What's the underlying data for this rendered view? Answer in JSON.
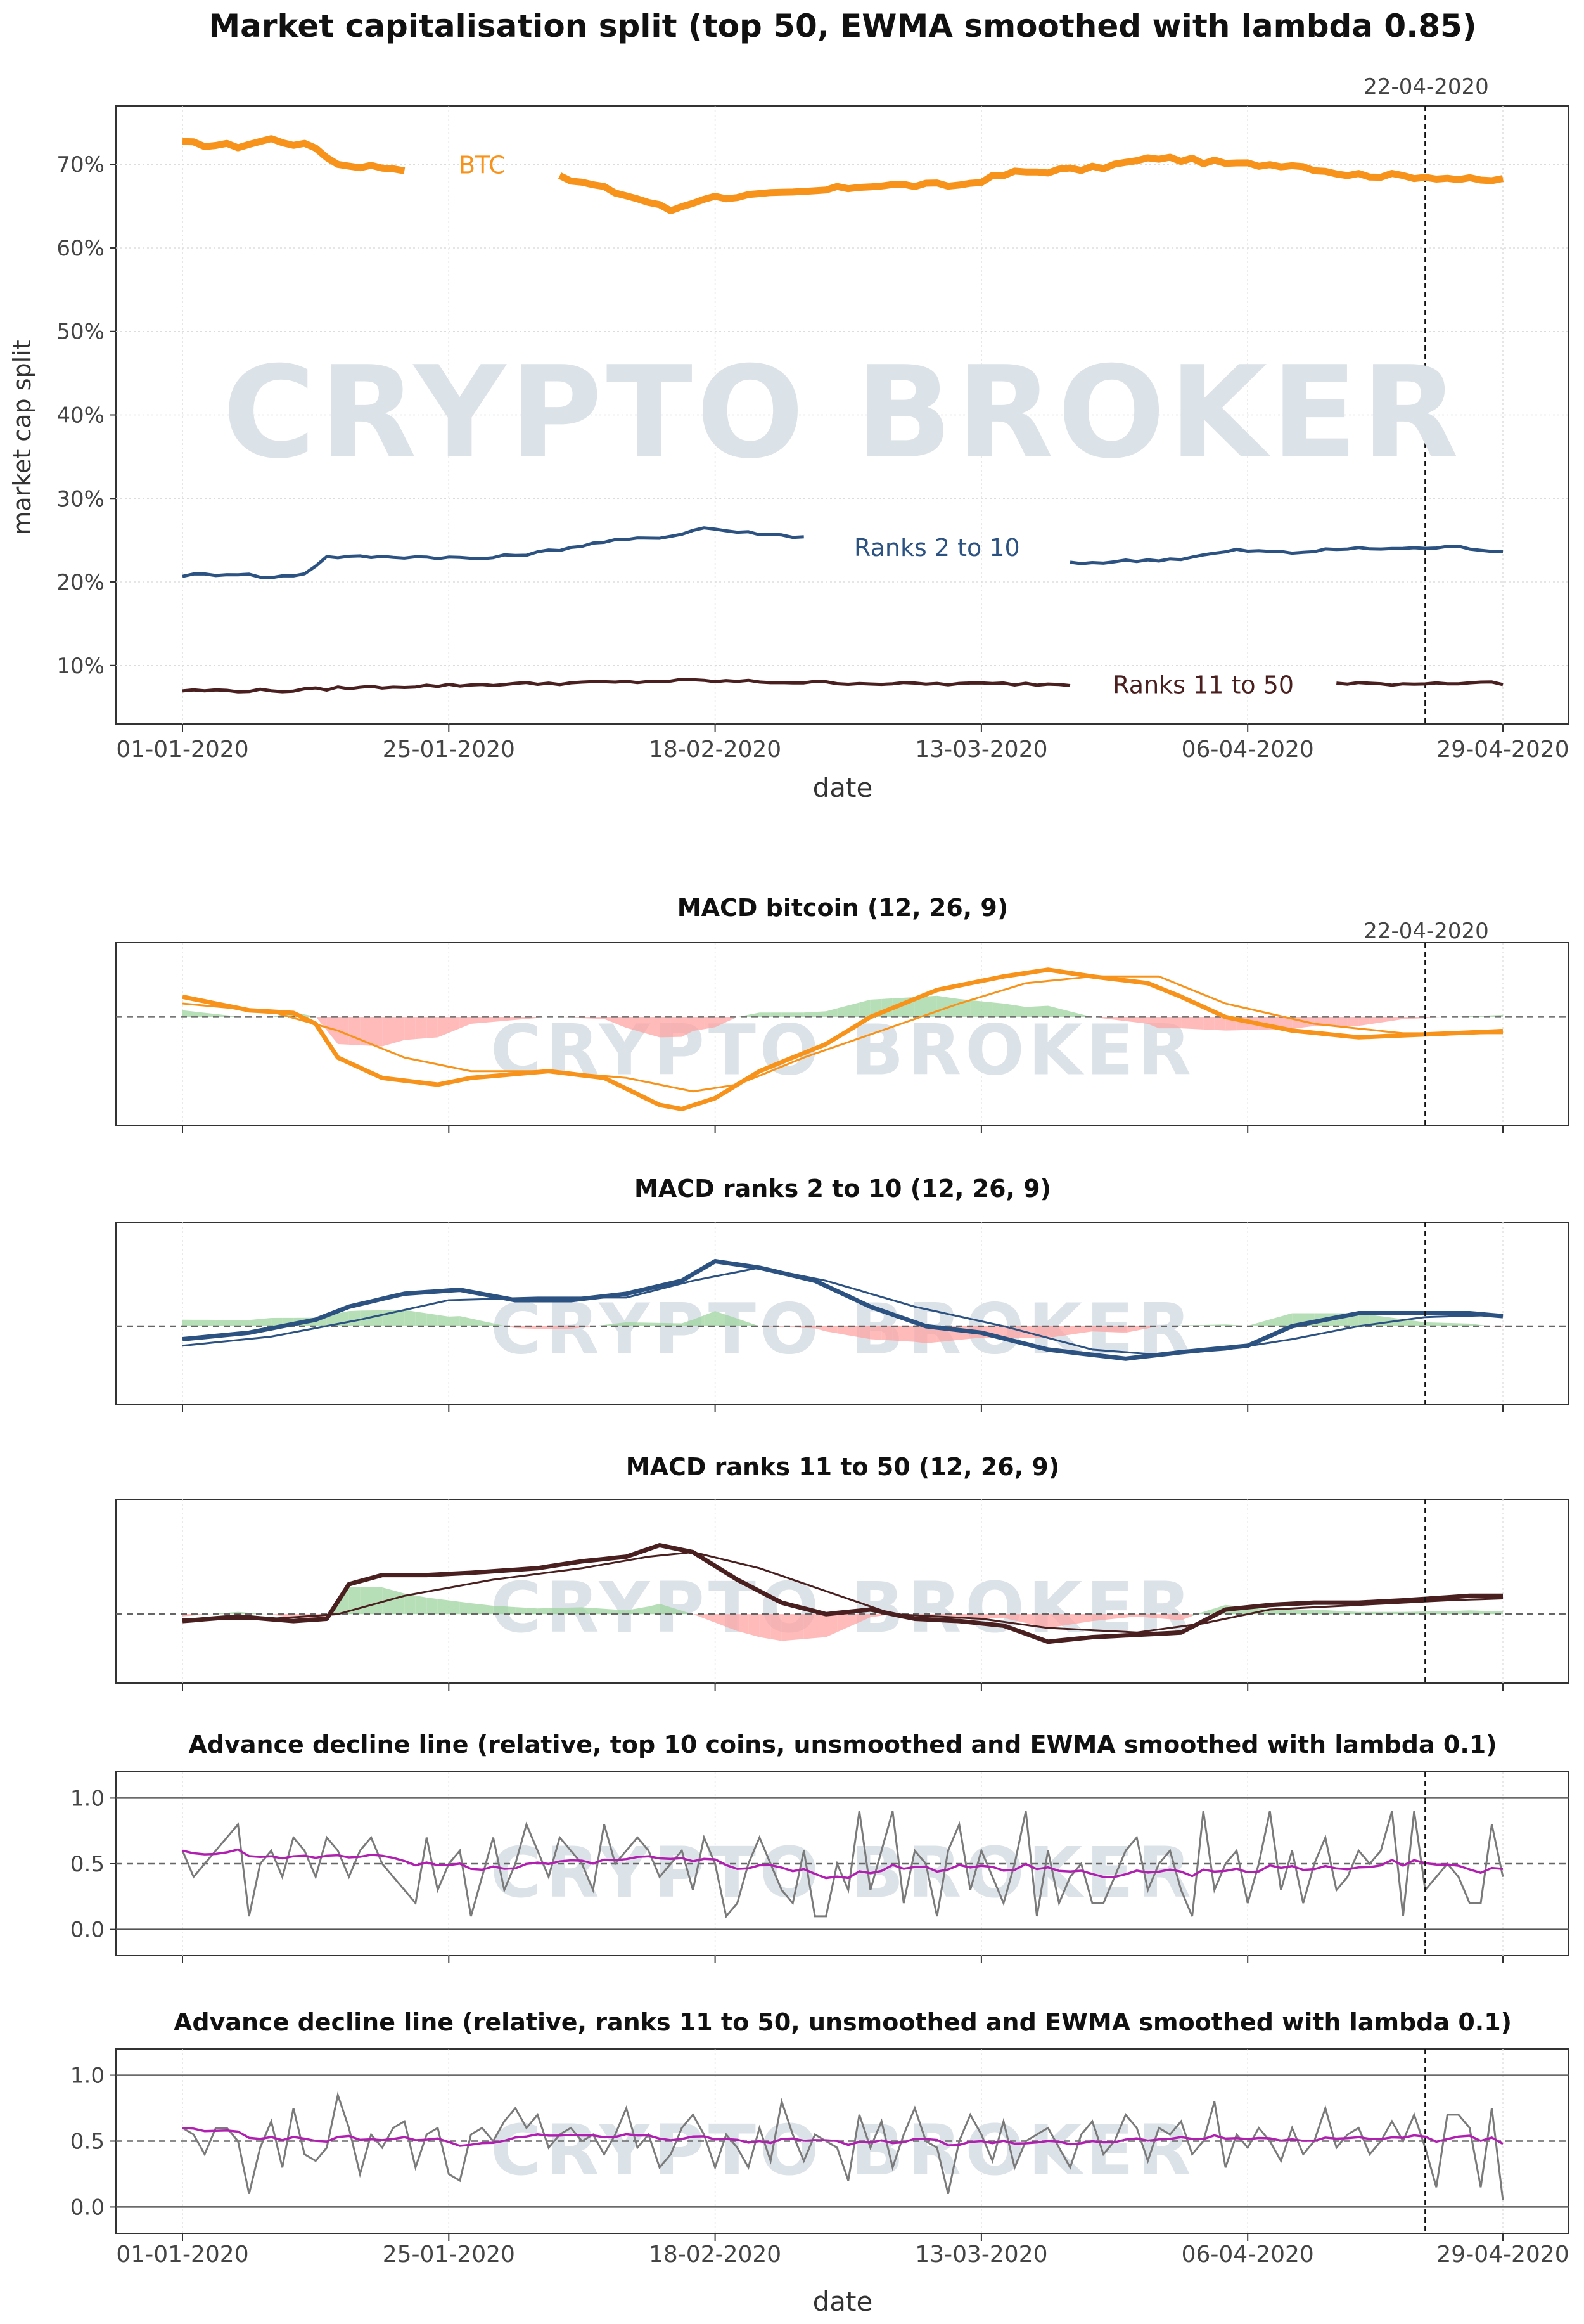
{
  "figure": {
    "title": "Market capitalisation split (top 50, EWMA smoothed with lambda 0.85)",
    "watermark": "CRYPTO BROKER",
    "marker_date_label": "22-04-2020",
    "x_ticks": [
      "01-01-2020",
      "25-01-2020",
      "18-02-2020",
      "13-03-2020",
      "06-04-2020",
      "29-04-2020"
    ],
    "x_label": "date"
  },
  "chart_data": [
    {
      "type": "line",
      "title": "Market capitalisation split (top 50, EWMA smoothed with lambda 0.85)",
      "xlabel": "date",
      "ylabel": "market cap split",
      "y_ticks": [
        "10%",
        "20%",
        "30%",
        "40%",
        "50%",
        "60%",
        "70%"
      ],
      "ylim": [
        3,
        77
      ],
      "x_range": [
        "01-01-2020",
        "29-04-2020"
      ],
      "grid": true,
      "vertical_marker": "22-04-2020",
      "colors": {
        "btc": "#f7931a",
        "ranks_2_10": "#2c5282",
        "ranks_11_50": "#4a1f1f"
      },
      "series": [
        {
          "name": "BTC",
          "label_at_day": 27,
          "knots": [
            [
              0,
              72.5
            ],
            [
              5,
              72.2
            ],
            [
              8,
              73
            ],
            [
              12,
              72
            ],
            [
              14,
              70
            ],
            [
              20,
              69.5
            ],
            [
              27,
              70
            ],
            [
              30,
              69.5
            ],
            [
              37,
              67.5
            ],
            [
              42,
              65.5
            ],
            [
              44,
              64.5
            ],
            [
              47,
              66
            ],
            [
              55,
              66.5
            ],
            [
              62,
              67.5
            ],
            [
              70,
              67.5
            ],
            [
              75,
              69
            ],
            [
              82,
              69.5
            ],
            [
              88,
              70.8
            ],
            [
              95,
              70
            ],
            [
              100,
              70
            ],
            [
              105,
              68.8
            ],
            [
              113,
              68.5
            ],
            [
              117,
              68
            ],
            [
              119,
              68.2
            ],
            [
              120,
              69
            ]
          ]
        },
        {
          "name": "Ranks 2 to 10",
          "label_at_day": 68,
          "knots": [
            [
              0,
              20.8
            ],
            [
              5,
              21
            ],
            [
              8,
              20.5
            ],
            [
              11,
              21
            ],
            [
              13,
              23
            ],
            [
              17,
              23
            ],
            [
              22,
              23
            ],
            [
              27,
              22.8
            ],
            [
              32,
              23.5
            ],
            [
              38,
              24.8
            ],
            [
              44,
              25.5
            ],
            [
              47,
              26.5
            ],
            [
              50,
              26
            ],
            [
              55,
              25.5
            ],
            [
              60,
              25
            ],
            [
              68,
              24
            ],
            [
              70,
              23
            ],
            [
              75,
              23
            ],
            [
              80,
              22.2
            ],
            [
              85,
              22.5
            ],
            [
              90,
              22.8
            ],
            [
              95,
              23.8
            ],
            [
              100,
              23.5
            ],
            [
              105,
              24
            ],
            [
              110,
              24
            ],
            [
              115,
              24.2
            ],
            [
              120,
              23.5
            ]
          ]
        },
        {
          "name": "Ranks 11 to 50",
          "label_at_day": 92,
          "knots": [
            [
              0,
              7
            ],
            [
              10,
              7
            ],
            [
              14,
              7.3
            ],
            [
              20,
              7.5
            ],
            [
              30,
              7.8
            ],
            [
              40,
              8
            ],
            [
              45,
              8.2
            ],
            [
              55,
              8
            ],
            [
              65,
              7.8
            ],
            [
              75,
              7.8
            ],
            [
              85,
              7.7
            ],
            [
              95,
              7.8
            ],
            [
              110,
              7.8
            ],
            [
              117,
              8
            ],
            [
              120,
              7.7
            ]
          ]
        }
      ]
    },
    {
      "type": "area",
      "title": "MACD bitcoin (12, 26, 9)",
      "color": "#f7931a",
      "ylim": [
        -0.08,
        0.055
      ],
      "macd_knots": [
        [
          0,
          0.015
        ],
        [
          3,
          0.01
        ],
        [
          6,
          0.005
        ],
        [
          10,
          0.003
        ],
        [
          12,
          -0.005
        ],
        [
          14,
          -0.03
        ],
        [
          18,
          -0.045
        ],
        [
          23,
          -0.05
        ],
        [
          26,
          -0.045
        ],
        [
          33,
          -0.04
        ],
        [
          38,
          -0.045
        ],
        [
          43,
          -0.065
        ],
        [
          45,
          -0.068
        ],
        [
          48,
          -0.06
        ],
        [
          52,
          -0.04
        ],
        [
          58,
          -0.02
        ],
        [
          62,
          0
        ],
        [
          68,
          0.02
        ],
        [
          74,
          0.03
        ],
        [
          78,
          0.035
        ],
        [
          82,
          0.03
        ],
        [
          87,
          0.025
        ],
        [
          90,
          0.015
        ],
        [
          94,
          0
        ],
        [
          100,
          -0.01
        ],
        [
          106,
          -0.015
        ],
        [
          120,
          -0.01
        ]
      ],
      "signal_knots": [
        [
          0,
          0.01
        ],
        [
          8,
          0.004
        ],
        [
          14,
          -0.01
        ],
        [
          20,
          -0.03
        ],
        [
          26,
          -0.04
        ],
        [
          33,
          -0.04
        ],
        [
          40,
          -0.045
        ],
        [
          46,
          -0.055
        ],
        [
          50,
          -0.05
        ],
        [
          56,
          -0.03
        ],
        [
          63,
          -0.01
        ],
        [
          70,
          0.01
        ],
        [
          76,
          0.025
        ],
        [
          82,
          0.03
        ],
        [
          88,
          0.03
        ],
        [
          94,
          0.01
        ],
        [
          102,
          -0.005
        ],
        [
          110,
          -0.012
        ],
        [
          120,
          -0.012
        ]
      ]
    },
    {
      "type": "area",
      "title": "MACD ranks 2 to 10 (12, 26, 9)",
      "color": "#2c5282",
      "ylim": [
        -0.06,
        0.08
      ],
      "macd_knots": [
        [
          0,
          -0.01
        ],
        [
          6,
          -0.005
        ],
        [
          12,
          0.005
        ],
        [
          15,
          0.015
        ],
        [
          20,
          0.025
        ],
        [
          25,
          0.028
        ],
        [
          30,
          0.02
        ],
        [
          35,
          0.02
        ],
        [
          40,
          0.025
        ],
        [
          45,
          0.035
        ],
        [
          48,
          0.05
        ],
        [
          52,
          0.045
        ],
        [
          57,
          0.035
        ],
        [
          62,
          0.015
        ],
        [
          67,
          0
        ],
        [
          72,
          -0.005
        ],
        [
          78,
          -0.018
        ],
        [
          85,
          -0.025
        ],
        [
          90,
          -0.02
        ],
        [
          96,
          -0.015
        ],
        [
          100,
          0
        ],
        [
          106,
          0.01
        ],
        [
          110,
          0.01
        ],
        [
          116,
          0.01
        ],
        [
          120,
          0.007
        ]
      ],
      "signal_knots": [
        [
          0,
          -0.015
        ],
        [
          8,
          -0.008
        ],
        [
          16,
          0.005
        ],
        [
          24,
          0.02
        ],
        [
          32,
          0.022
        ],
        [
          40,
          0.022
        ],
        [
          46,
          0.035
        ],
        [
          52,
          0.045
        ],
        [
          58,
          0.035
        ],
        [
          66,
          0.015
        ],
        [
          74,
          0
        ],
        [
          82,
          -0.018
        ],
        [
          88,
          -0.022
        ],
        [
          94,
          -0.018
        ],
        [
          100,
          -0.01
        ],
        [
          106,
          0
        ],
        [
          112,
          0.007
        ],
        [
          120,
          0.009
        ]
      ]
    },
    {
      "type": "area",
      "title": "MACD ranks 11 to 50 (12, 26, 9)",
      "color": "#4a1f1f",
      "ylim": [
        -0.03,
        0.05
      ],
      "macd_knots": [
        [
          0,
          -0.003
        ],
        [
          5,
          -0.001
        ],
        [
          10,
          -0.003
        ],
        [
          13,
          -0.002
        ],
        [
          15,
          0.013
        ],
        [
          18,
          0.017
        ],
        [
          22,
          0.017
        ],
        [
          26,
          0.018
        ],
        [
          32,
          0.02
        ],
        [
          36,
          0.023
        ],
        [
          40,
          0.025
        ],
        [
          43,
          0.03
        ],
        [
          46,
          0.027
        ],
        [
          50,
          0.015
        ],
        [
          54,
          0.005
        ],
        [
          58,
          0
        ],
        [
          62,
          0.002
        ],
        [
          66,
          -0.002
        ],
        [
          70,
          -0.003
        ],
        [
          74,
          -0.005
        ],
        [
          78,
          -0.012
        ],
        [
          82,
          -0.01
        ],
        [
          86,
          -0.009
        ],
        [
          90,
          -0.008
        ],
        [
          94,
          0.002
        ],
        [
          98,
          0.004
        ],
        [
          102,
          0.005
        ],
        [
          106,
          0.005
        ],
        [
          110,
          0.006
        ],
        [
          113,
          0.007
        ],
        [
          116,
          0.008
        ],
        [
          119,
          0.008
        ],
        [
          120,
          0.005
        ]
      ],
      "signal_knots": [
        [
          0,
          -0.002
        ],
        [
          8,
          -0.002
        ],
        [
          14,
          0
        ],
        [
          20,
          0.008
        ],
        [
          28,
          0.015
        ],
        [
          36,
          0.02
        ],
        [
          42,
          0.025
        ],
        [
          46,
          0.027
        ],
        [
          52,
          0.02
        ],
        [
          58,
          0.01
        ],
        [
          64,
          0
        ],
        [
          72,
          -0.002
        ],
        [
          78,
          -0.006
        ],
        [
          86,
          -0.008
        ],
        [
          92,
          -0.004
        ],
        [
          98,
          0.002
        ],
        [
          106,
          0.004
        ],
        [
          114,
          0.006
        ],
        [
          120,
          0.007
        ]
      ]
    },
    {
      "type": "line",
      "title": "Advance decline line (relative, top 10 coins, unsmoothed and EWMA smoothed with lambda 0.1)",
      "y_ticks": [
        "0.0",
        "0.5",
        "1.0"
      ],
      "ylim": [
        -0.2,
        1.2
      ],
      "raw_color": "#7a7a7a",
      "ewma_color": "#b01fb0",
      "raw": [
        0.6,
        0.4,
        0.5,
        0.6,
        0.7,
        0.8,
        0.1,
        0.5,
        0.6,
        0.4,
        0.7,
        0.6,
        0.4,
        0.7,
        0.6,
        0.4,
        0.6,
        0.7,
        0.5,
        0.4,
        0.3,
        0.2,
        0.7,
        0.3,
        0.5,
        0.6,
        0.1,
        0.4,
        0.7,
        0.3,
        0.5,
        0.8,
        0.6,
        0.4,
        0.7,
        0.6,
        0.5,
        0.3,
        0.8,
        0.5,
        0.6,
        0.7,
        0.6,
        0.4,
        0.5,
        0.6,
        0.3,
        0.7,
        0.5,
        0.1,
        0.2,
        0.5,
        0.7,
        0.5,
        0.3,
        0.2,
        0.6,
        0.1,
        0.1,
        0.5,
        0.3,
        0.9,
        0.3,
        0.6,
        0.9,
        0.2,
        0.6,
        0.5,
        0.1,
        0.6,
        0.8,
        0.3,
        0.6,
        0.4,
        0.2,
        0.5,
        0.9,
        0.1,
        0.6,
        0.2,
        0.4,
        0.5,
        0.2,
        0.2,
        0.4,
        0.6,
        0.7,
        0.3,
        0.5,
        0.6,
        0.3,
        0.1,
        0.9,
        0.3,
        0.5,
        0.6,
        0.2,
        0.5,
        0.9,
        0.3,
        0.6,
        0.2,
        0.5,
        0.7,
        0.3,
        0.4,
        0.6,
        0.5,
        0.6,
        0.9,
        0.1,
        0.9,
        0.3,
        0.4,
        0.5,
        0.4,
        0.2,
        0.2,
        0.8,
        0.4,
        0.1
      ]
    },
    {
      "type": "line",
      "title": "Advance decline line (relative, ranks 11 to 50, unsmoothed and EWMA smoothed with lambda 0.1)",
      "y_ticks": [
        "0.0",
        "0.5",
        "1.0"
      ],
      "ylim": [
        -0.2,
        1.2
      ],
      "raw_color": "#7a7a7a",
      "ewma_color": "#b01fb0",
      "raw": [
        0.6,
        0.55,
        0.4,
        0.6,
        0.6,
        0.5,
        0.1,
        0.45,
        0.65,
        0.3,
        0.75,
        0.4,
        0.35,
        0.45,
        0.85,
        0.6,
        0.25,
        0.55,
        0.45,
        0.6,
        0.65,
        0.3,
        0.55,
        0.6,
        0.25,
        0.2,
        0.55,
        0.6,
        0.5,
        0.65,
        0.75,
        0.6,
        0.7,
        0.45,
        0.55,
        0.6,
        0.5,
        0.55,
        0.4,
        0.55,
        0.75,
        0.45,
        0.55,
        0.3,
        0.4,
        0.6,
        0.7,
        0.55,
        0.3,
        0.55,
        0.45,
        0.3,
        0.6,
        0.35,
        0.8,
        0.55,
        0.35,
        0.55,
        0.5,
        0.45,
        0.2,
        0.7,
        0.45,
        0.65,
        0.3,
        0.55,
        0.75,
        0.5,
        0.45,
        0.1,
        0.5,
        0.7,
        0.55,
        0.35,
        0.65,
        0.3,
        0.5,
        0.55,
        0.6,
        0.45,
        0.3,
        0.55,
        0.65,
        0.4,
        0.5,
        0.7,
        0.6,
        0.35,
        0.6,
        0.55,
        0.65,
        0.4,
        0.5,
        0.8,
        0.3,
        0.55,
        0.45,
        0.6,
        0.5,
        0.35,
        0.6,
        0.4,
        0.5,
        0.75,
        0.45,
        0.55,
        0.6,
        0.4,
        0.5,
        0.65,
        0.5,
        0.7,
        0.45,
        0.15,
        0.7,
        0.7,
        0.6,
        0.15,
        0.75,
        0.05,
        0.05
      ]
    }
  ]
}
